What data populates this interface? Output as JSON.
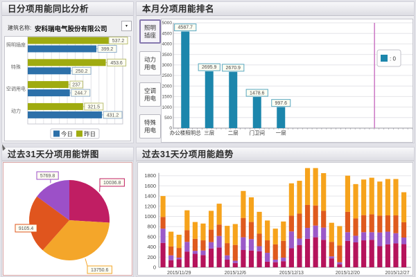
{
  "panels": {
    "daily_compare": {
      "title": "日分项用能同比分析",
      "building_label": "建筑名称:",
      "building_value": "安科瑞电气股份有限公司",
      "dropdown_glyph": "▾"
    },
    "month_rank": {
      "title": "本月分项用能排名",
      "side_buttons": [
        "照明插座",
        "动力用电",
        "空调用电",
        "特殊用电"
      ],
      "selected_button": 0,
      "legend_text": ": 0"
    },
    "pie31": {
      "title": "过去31天分项用能饼图"
    },
    "trend31": {
      "title": "过去31天分项用能趋势"
    }
  },
  "colors": {
    "today_blue": "#2C70A9",
    "yesterday_green": "#9FAB10",
    "teal": "#1C86AC",
    "pink_line": "#CC77C4",
    "crimson": "#B5135B",
    "purple": "#9B59C8",
    "orangered": "#DF5A1D",
    "amber": "#F6A31C",
    "pie_magenta": "#C01E63",
    "pie_amber": "#F4A62A",
    "pie_orange": "#E0551E",
    "pie_purple": "#9C50C8"
  },
  "chart_data": [
    {
      "id": "daily_compare",
      "type": "bar",
      "orientation": "horizontal",
      "title": "日分项用能同比分析",
      "categories": [
        "照明插座",
        "特殊",
        "空调用电",
        "动力"
      ],
      "series": [
        {
          "name": "今日",
          "color": "#2C70A9",
          "values": [
            399.2,
            250.2,
            244.7,
            431.2
          ]
        },
        {
          "name": "昨日",
          "color": "#9FAB10",
          "values": [
            537.2,
            453.6,
            237,
            321.5
          ]
        }
      ],
      "xlim": [
        0,
        560
      ],
      "grid": "vertical",
      "legend_position": "bottom"
    },
    {
      "id": "month_rank",
      "type": "bar",
      "title": "本月分项用能排名",
      "categories": [
        "办公楼照明总",
        "三层",
        "二层",
        "门卫间",
        "一层"
      ],
      "values": [
        4587.7,
        2695.9,
        2670.9,
        1478.6,
        997.6
      ],
      "bar_color": "#1C86AC",
      "ylim": [
        0,
        5000
      ],
      "ytick": 500,
      "grid": "horizontal",
      "legend": ": 0",
      "n_slots": 10,
      "marker_line_x_fraction": 0.841
    },
    {
      "id": "pie31",
      "type": "pie",
      "title": "过去31天分项用能饼图",
      "slices": [
        {
          "value": 10036.8,
          "label": "10036.8",
          "color": "#C01E63"
        },
        {
          "value": 13750.6,
          "label": "13750.6",
          "color": "#F4A62A"
        },
        {
          "value": 9105.4,
          "label": "9105.4",
          "color": "#E0551E"
        },
        {
          "value": 5769.8,
          "label": "5769.8",
          "color": "#9C50C8"
        }
      ],
      "start_angle_deg": 0,
      "clockwise": true
    },
    {
      "id": "trend31",
      "type": "stacked_bar",
      "title": "过去31天分项用能趋势",
      "n_bars": 31,
      "tick_labels": [
        "2015/11/29",
        "2015/12/6",
        "2015/12/13",
        "2015/12/20",
        "2015/12/27"
      ],
      "tick_positions": [
        2,
        9,
        16,
        23,
        30
      ],
      "ylim": [
        0,
        1800
      ],
      "ytick": 200,
      "series": [
        {
          "name": "series-crimson",
          "color": "#B5135B",
          "values": [
            480,
            140,
            160,
            310,
            265,
            240,
            370,
            390,
            150,
            85,
            340,
            330,
            315,
            110,
            100,
            120,
            375,
            435,
            560,
            590,
            540,
            175,
            60,
            520,
            490,
            530,
            540,
            415,
            450,
            470,
            455
          ]
        },
        {
          "name": "series-purple",
          "color": "#9B59C8",
          "values": [
            280,
            95,
            30,
            190,
            60,
            90,
            125,
            225,
            85,
            45,
            250,
            225,
            100,
            175,
            50,
            70,
            330,
            130,
            215,
            230,
            240,
            40,
            40,
            170,
            130,
            160,
            150,
            270,
            250,
            200,
            130
          ]
        },
        {
          "name": "series-orangered",
          "color": "#DF5A1D",
          "values": [
            230,
            175,
            190,
            230,
            235,
            200,
            245,
            225,
            240,
            310,
            380,
            335,
            245,
            245,
            300,
            330,
            310,
            490,
            450,
            395,
            330,
            285,
            330,
            400,
            340,
            335,
            350,
            330,
            320,
            350,
            300
          ]
        },
        {
          "name": "series-amber",
          "color": "#F6A31C",
          "values": [
            410,
            290,
            260,
            390,
            330,
            330,
            370,
            410,
            340,
            410,
            530,
            485,
            430,
            390,
            310,
            380,
            635,
            645,
            725,
            735,
            740,
            375,
            380,
            710,
            675,
            700,
            720,
            670,
            715,
            715,
            590
          ]
        }
      ]
    }
  ]
}
